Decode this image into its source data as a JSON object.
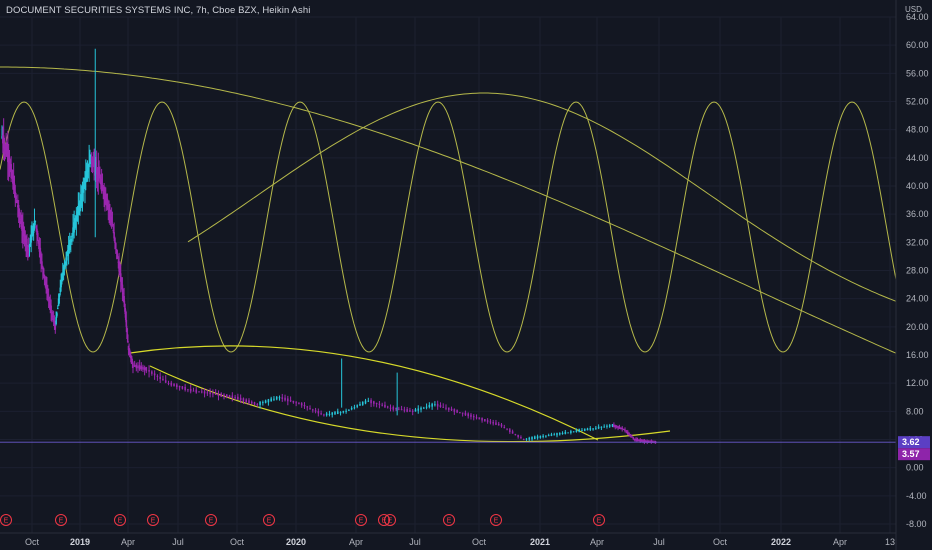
{
  "header": {
    "title": "DOCUMENT SECURITIES SYSTEMS INC, 7h, Cboe BZX, Heikin Ashi",
    "currency": "USD"
  },
  "colors": {
    "background": "#131722",
    "candle_up": "#26c6da",
    "candle_down": "#9c27b0",
    "cycle_lines": "#b5b84a",
    "channel_lines": "#d6d92a",
    "price_line": "#6a5acd",
    "earnings": "#f23645"
  },
  "chart_data": {
    "type": "line",
    "series_name": "",
    "ylim": [
      -9,
      66
    ],
    "y_ticks": [
      "64.00",
      "60.00",
      "56.00",
      "52.00",
      "48.00",
      "44.00",
      "40.00",
      "36.00",
      "32.00",
      "28.00",
      "24.00",
      "20.00",
      "16.00",
      "12.00",
      "8.00",
      "4.00",
      "0.00",
      "-4.00",
      "-8.00"
    ],
    "x_ticks": [
      {
        "label": "Oct",
        "bold": false
      },
      {
        "label": "2019",
        "bold": true
      },
      {
        "label": "Apr",
        "bold": false
      },
      {
        "label": "Jul",
        "bold": false
      },
      {
        "label": "Oct",
        "bold": false
      },
      {
        "label": "2020",
        "bold": true
      },
      {
        "label": "Apr",
        "bold": false
      },
      {
        "label": "Jul",
        "bold": false
      },
      {
        "label": "Oct",
        "bold": false
      },
      {
        "label": "2021",
        "bold": true
      },
      {
        "label": "Apr",
        "bold": false
      },
      {
        "label": "Jul",
        "bold": false
      },
      {
        "label": "Oct",
        "bold": false
      },
      {
        "label": "2022",
        "bold": true
      },
      {
        "label": "Apr",
        "bold": false
      },
      {
        "label": "13",
        "bold": false
      }
    ],
    "price_path": [
      [
        0,
        47
      ],
      [
        0.03,
        44
      ],
      [
        0.06,
        39
      ],
      [
        0.09,
        34
      ],
      [
        0.12,
        31
      ],
      [
        0.15,
        35
      ],
      [
        0.18,
        29
      ],
      [
        0.21,
        24
      ],
      [
        0.24,
        20
      ],
      [
        0.27,
        27
      ],
      [
        0.3,
        31
      ],
      [
        0.34,
        36
      ],
      [
        0.37,
        40
      ],
      [
        0.4,
        44
      ],
      [
        0.43,
        42
      ],
      [
        0.46,
        39
      ],
      [
        0.49,
        36
      ],
      [
        0.52,
        30
      ],
      [
        0.55,
        24
      ],
      [
        0.57,
        17
      ],
      [
        0.59,
        14.5
      ],
      [
        0.65,
        14
      ],
      [
        0.75,
        12
      ],
      [
        0.85,
        11
      ],
      [
        0.95,
        10.5
      ],
      [
        1.05,
        10
      ],
      [
        1.15,
        9
      ],
      [
        1.25,
        10
      ],
      [
        1.35,
        9
      ],
      [
        1.45,
        7.5
      ],
      [
        1.55,
        8
      ],
      [
        1.65,
        9.5
      ],
      [
        1.75,
        8.5
      ],
      [
        1.85,
        8
      ],
      [
        1.95,
        9
      ],
      [
        2.05,
        8
      ],
      [
        2.15,
        7
      ],
      [
        2.25,
        6
      ],
      [
        2.35,
        4
      ],
      [
        2.45,
        4.5
      ],
      [
        2.55,
        5
      ],
      [
        2.65,
        5.5
      ],
      [
        2.75,
        6
      ],
      [
        2.8,
        5.5
      ],
      [
        2.85,
        4
      ],
      [
        2.9,
        3.7
      ],
      [
        2.95,
        3.6
      ]
    ],
    "spikes": [
      {
        "x": 0.42,
        "high": 59.5
      },
      {
        "x": 1.53,
        "high": 15.5
      },
      {
        "x": 1.78,
        "high": 13.5
      }
    ],
    "last_price": "3.62",
    "second_price": "3.57",
    "earnings_markers": [
      "E",
      "E",
      "E",
      "E",
      "E",
      "E",
      "E",
      "E",
      "E",
      "E",
      "E",
      "E"
    ]
  }
}
